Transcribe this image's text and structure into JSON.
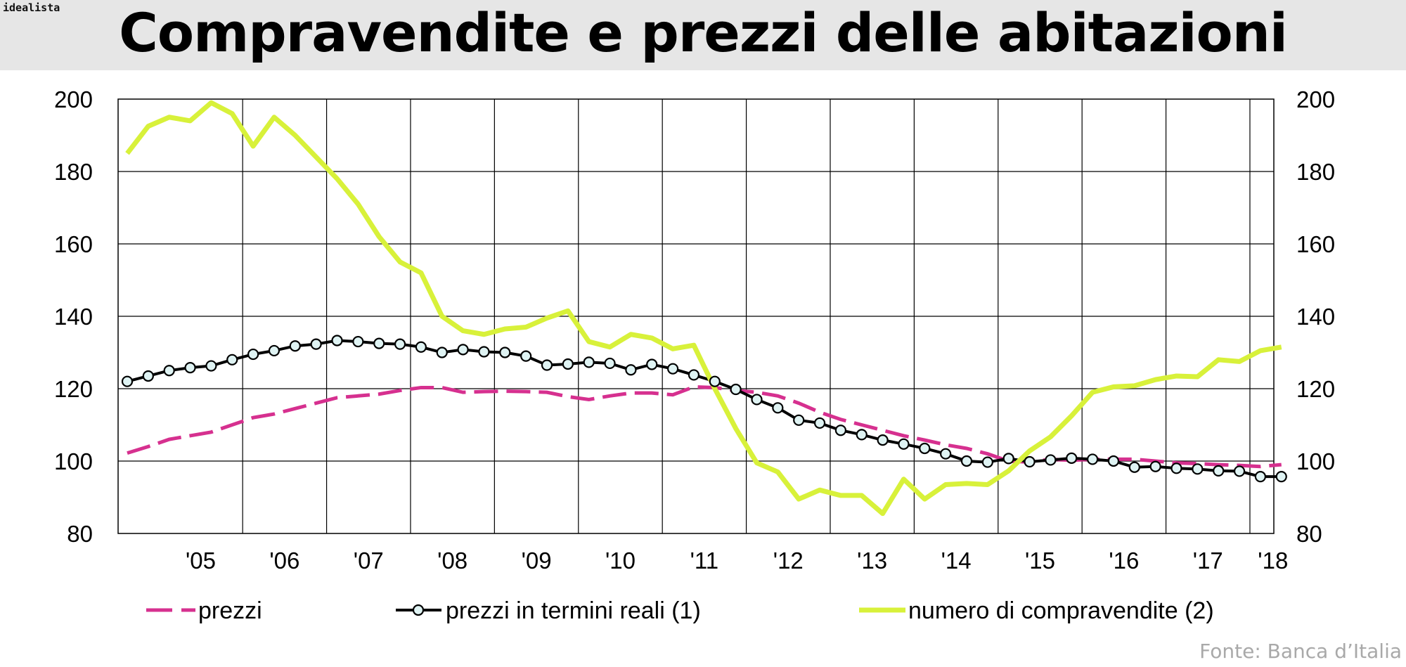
{
  "header": {
    "brand": "idealista",
    "title": "Compravendite e prezzi delle abitazioni"
  },
  "source": "Fonte: Banca d’Italia",
  "colors": {
    "prezzi": "#d6308f",
    "reali": "#000000",
    "compravendite": "#d8f13a",
    "header_bg": "#e6e6e6"
  },
  "chart_data": {
    "type": "line",
    "x_unit": "quarter",
    "x": [
      "2004Q3",
      "2004Q4",
      "2005Q1",
      "2005Q2",
      "2005Q3",
      "2005Q4",
      "2006Q1",
      "2006Q2",
      "2006Q3",
      "2006Q4",
      "2007Q1",
      "2007Q2",
      "2007Q3",
      "2007Q4",
      "2008Q1",
      "2008Q2",
      "2008Q3",
      "2008Q4",
      "2009Q1",
      "2009Q2",
      "2009Q3",
      "2009Q4",
      "2010Q1",
      "2010Q2",
      "2010Q3",
      "2010Q4",
      "2011Q1",
      "2011Q2",
      "2011Q3",
      "2011Q4",
      "2012Q1",
      "2012Q2",
      "2012Q3",
      "2012Q4",
      "2013Q1",
      "2013Q2",
      "2013Q3",
      "2013Q4",
      "2014Q1",
      "2014Q2",
      "2014Q3",
      "2014Q4",
      "2015Q1",
      "2015Q2",
      "2015Q3",
      "2015Q4",
      "2016Q1",
      "2016Q2",
      "2016Q3",
      "2016Q4",
      "2017Q1",
      "2017Q2",
      "2017Q3",
      "2017Q4",
      "2018Q1",
      "2018Q2"
    ],
    "categories": [
      "'05",
      "'06",
      "'07",
      "'08",
      "'09",
      "'10",
      "'11",
      "'12",
      "'13",
      "'14",
      "'15",
      "'16",
      "'17",
      "'18"
    ],
    "ylim": [
      80,
      200
    ],
    "yticks_left": [
      80,
      100,
      120,
      140,
      160,
      180,
      200
    ],
    "yticks_right": [
      80,
      100,
      120,
      140,
      160,
      180,
      200
    ],
    "grid": true,
    "legend_position": "bottom",
    "series": [
      {
        "name": "prezzi",
        "key": "prezzi",
        "style": "dashed",
        "values": [
          102.2,
          104,
          106,
          107,
          108,
          110,
          112,
          113,
          114.5,
          116,
          117.5,
          118,
          118.5,
          119.5,
          120.3,
          120.3,
          119,
          119.2,
          119.3,
          119.2,
          119,
          117.8,
          117,
          118,
          118.8,
          118.8,
          118.3,
          120.5,
          120.3,
          119.5,
          119,
          118,
          116,
          113.5,
          111.5,
          110,
          108.5,
          107,
          105.8,
          104.5,
          103.5,
          102,
          100,
          99.7,
          100.5,
          100.2,
          100.5,
          100.5,
          100.5,
          100,
          99.5,
          99.3,
          99,
          98.8,
          98.5,
          99
        ]
      },
      {
        "name": "prezzi in termini reali (1)",
        "key": "reali",
        "style": "line-with-circles",
        "values": [
          122,
          123.5,
          125,
          125.8,
          126.3,
          128,
          129.5,
          130.5,
          131.8,
          132.3,
          133.3,
          133,
          132.5,
          132.3,
          131.5,
          130,
          130.8,
          130.2,
          130,
          129,
          126.5,
          126.8,
          127.3,
          127,
          125.2,
          126.7,
          125.5,
          123.8,
          122,
          119.8,
          117,
          114.7,
          111.3,
          110.5,
          108.5,
          107.3,
          105.8,
          104.7,
          103.5,
          102,
          100,
          99.7,
          100.7,
          99.8,
          100.3,
          100.8,
          100.5,
          100,
          98.3,
          98.5,
          98,
          97.8,
          97.3,
          97.2,
          95.7,
          95.7
        ]
      },
      {
        "name": "numero di compravendite (2)",
        "key": "compravendite",
        "style": "thick",
        "values": [
          185,
          192.5,
          195,
          194,
          199,
          196,
          187,
          195,
          190,
          184,
          178,
          171,
          162,
          155,
          152,
          140,
          136,
          135,
          136.5,
          137,
          139.5,
          141.5,
          133,
          131.5,
          135,
          134,
          131,
          132,
          120,
          109,
          99.5,
          97,
          89.5,
          92,
          90.5,
          90.5,
          85.5,
          95,
          89.5,
          93.5,
          93.8,
          93.5,
          97.3,
          102.8,
          106.7,
          112.5,
          119,
          120.5,
          120.8,
          122.5,
          123.5,
          123.3,
          128,
          127.5,
          130.5,
          131.5
        ]
      }
    ]
  }
}
